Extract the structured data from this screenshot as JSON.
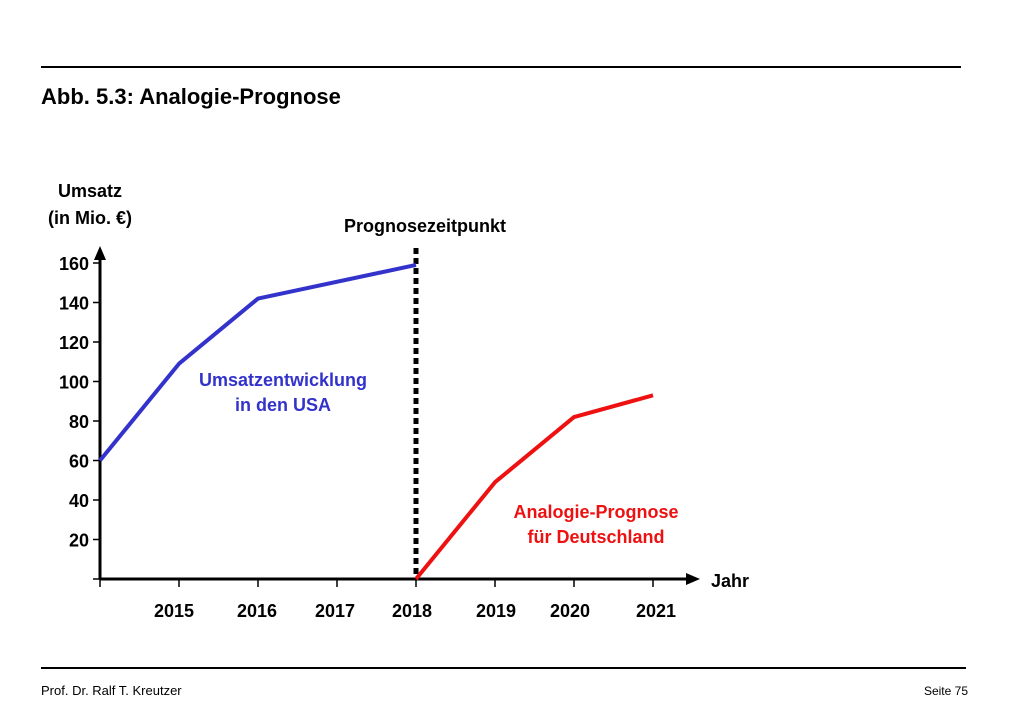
{
  "page": {
    "title": "Abb. 5.3: Analogie-Prognose",
    "footer_left": "Prof. Dr. Ralf T. Kreutzer",
    "footer_right": "Seite 75"
  },
  "chart_data": {
    "type": "line",
    "ylabel": [
      "Umsatz",
      "(in Mio. €)"
    ],
    "xlabel": "Jahr",
    "x": [
      2014,
      2015,
      2016,
      2017,
      2018,
      2019,
      2020,
      2021
    ],
    "x_tick_labels": [
      "2015",
      "2016",
      "2017",
      "2018",
      "2019",
      "2020",
      "2021"
    ],
    "y_ticks": [
      20,
      40,
      60,
      80,
      100,
      120,
      140,
      160
    ],
    "ylim": [
      0,
      160
    ],
    "marker": {
      "label": "Prognosezeitpunkt",
      "x": 2018,
      "style": "dotted"
    },
    "series": [
      {
        "label": [
          "Umsatzentwicklung",
          "in den USA"
        ],
        "color": "#3333cc",
        "points": [
          [
            2014,
            60
          ],
          [
            2015,
            109
          ],
          [
            2016,
            142
          ],
          [
            2018,
            159
          ]
        ]
      },
      {
        "label": [
          "Analogie-Prognose",
          "für Deutschland"
        ],
        "color": "#ee1111",
        "points": [
          [
            2018,
            0
          ],
          [
            2019,
            49
          ],
          [
            2020,
            82
          ],
          [
            2021,
            93
          ]
        ]
      }
    ]
  }
}
